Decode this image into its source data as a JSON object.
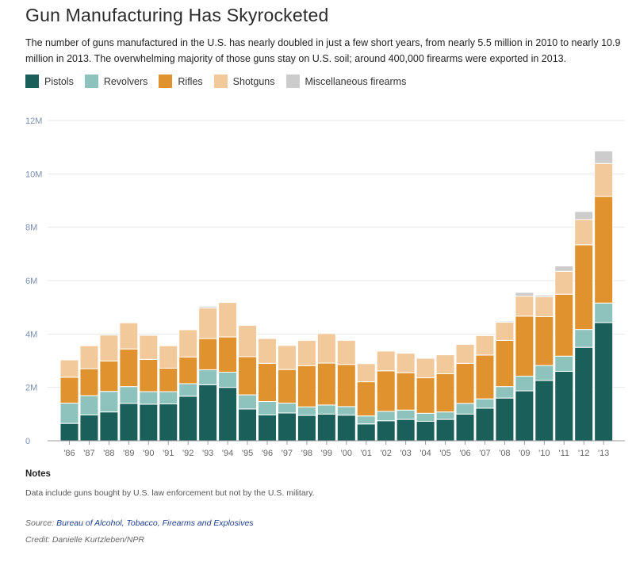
{
  "header": {
    "title": "Gun Manufacturing Has Skyrocketed",
    "subtitle": "The number of guns manufactured in the U.S. has nearly doubled in just a few short years, from nearly 5.5 million in 2010 to nearly 10.9 million in 2013. The overwhelming majority of those guns stay on U.S. soil; around 400,000 firearms were exported in 2013."
  },
  "legend": [
    {
      "name": "Pistols",
      "color": "#1a5f5a"
    },
    {
      "name": "Revolvers",
      "color": "#8ec3bd"
    },
    {
      "name": "Rifles",
      "color": "#e0922f"
    },
    {
      "name": "Shotguns",
      "color": "#f2c99a"
    },
    {
      "name": "Miscellaneous firearms",
      "color": "#cccccc"
    }
  ],
  "chart_data": {
    "type": "bar",
    "stacked": true,
    "categories": [
      "'86",
      "'87",
      "'88",
      "'89",
      "'90",
      "'91",
      "'92",
      "'93",
      "'94",
      "'95",
      "'96",
      "'97",
      "'98",
      "'99",
      "'00",
      "'01",
      "'02",
      "'03",
      "'04",
      "'05",
      "'06",
      "'07",
      "'08",
      "'09",
      "'10",
      "'11",
      "'12",
      "'13"
    ],
    "series": [
      {
        "name": "Pistols",
        "color": "#1a5f5a",
        "values": [
          0.65,
          0.97,
          1.08,
          1.4,
          1.37,
          1.38,
          1.67,
          2.1,
          2.0,
          1.19,
          0.97,
          1.04,
          0.95,
          1.0,
          0.96,
          0.63,
          0.75,
          0.8,
          0.73,
          0.8,
          1.0,
          1.22,
          1.6,
          1.87,
          2.26,
          2.6,
          3.5,
          4.43
        ]
      },
      {
        "name": "Revolvers",
        "color": "#8ec3bd",
        "values": [
          0.76,
          0.72,
          0.77,
          0.63,
          0.47,
          0.46,
          0.47,
          0.56,
          0.57,
          0.53,
          0.5,
          0.37,
          0.32,
          0.34,
          0.32,
          0.3,
          0.35,
          0.35,
          0.3,
          0.28,
          0.4,
          0.35,
          0.43,
          0.55,
          0.56,
          0.57,
          0.67,
          0.73
        ]
      },
      {
        "name": "Rifles",
        "color": "#e0922f",
        "values": [
          0.97,
          1.01,
          1.14,
          1.41,
          1.21,
          0.88,
          1.0,
          1.17,
          1.32,
          1.43,
          1.43,
          1.26,
          1.54,
          1.57,
          1.58,
          1.28,
          1.52,
          1.4,
          1.33,
          1.43,
          1.5,
          1.64,
          1.73,
          2.25,
          1.83,
          2.32,
          3.17,
          4.0
        ]
      },
      {
        "name": "Shotguns",
        "color": "#f2c99a",
        "values": [
          0.65,
          0.86,
          0.97,
          0.98,
          0.9,
          0.84,
          1.02,
          1.15,
          1.29,
          1.17,
          0.93,
          0.9,
          0.95,
          1.11,
          0.9,
          0.68,
          0.74,
          0.73,
          0.73,
          0.71,
          0.71,
          0.73,
          0.68,
          0.75,
          0.75,
          0.86,
          0.95,
          1.23
        ]
      },
      {
        "name": "Miscellaneous firearms",
        "color": "#cccccc",
        "values": [
          0.0,
          0.0,
          0.0,
          0.0,
          0.0,
          0.0,
          0.0,
          0.06,
          0.0,
          0.0,
          0.0,
          0.0,
          0.0,
          0.03,
          0.0,
          0.0,
          0.0,
          0.0,
          0.0,
          0.0,
          0.0,
          0.0,
          0.04,
          0.14,
          0.06,
          0.2,
          0.3,
          0.47
        ]
      }
    ],
    "y_ticks": [
      "0",
      "2M",
      "4M",
      "6M",
      "8M",
      "10M",
      "12M"
    ],
    "ylim": [
      0,
      12
    ],
    "grid": true,
    "legend_position": "top-left"
  },
  "notes": {
    "heading": "Notes",
    "text": "Data include guns bought by U.S. law enforcement but not by the U.S. military."
  },
  "source": {
    "label": "Source: ",
    "link_text": "Bureau of Alcohol, Tobacco, Firearms and Explosives"
  },
  "credit": "Credit: Danielle Kurtzleben/NPR"
}
